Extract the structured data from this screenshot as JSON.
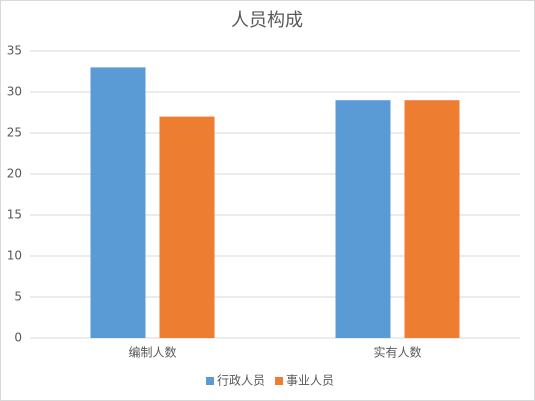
{
  "chart_data": {
    "type": "bar",
    "title": "人员构成",
    "categories": [
      "编制人数",
      "实有人数"
    ],
    "series": [
      {
        "name": "行政人员",
        "color": "#5b9bd5",
        "values": [
          33,
          29
        ]
      },
      {
        "name": "事业人员",
        "color": "#ed7d31",
        "values": [
          27,
          29
        ]
      }
    ],
    "ylim": [
      0,
      35
    ],
    "yticks": [
      0,
      5,
      10,
      15,
      20,
      25,
      30,
      35
    ],
    "grid": true,
    "legend": "bottom"
  }
}
